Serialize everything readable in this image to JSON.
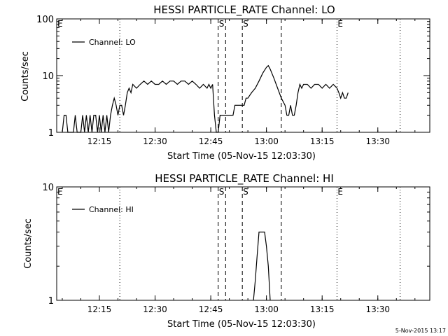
{
  "footer_stamp": "5-Nov-2015 13:17",
  "chart_data": [
    {
      "type": "line",
      "title": "HESSI PARTICLE_RATE Channel: LO",
      "xlabel": "Start Time (05-Nov-15 12:03:30)",
      "ylabel": "Counts/sec",
      "yscale": "log",
      "ylim": [
        1,
        100
      ],
      "xlim": [
        "12:03:30",
        "13:44:00"
      ],
      "xticks": [
        "12:15",
        "12:30",
        "12:45",
        "13:00",
        "13:15",
        "13:30"
      ],
      "yticks": [
        "1",
        "10",
        "100"
      ],
      "legend": "top-left",
      "series": [
        {
          "name": "Channel: LO",
          "points": [
            [
              "12:05:00",
              1
            ],
            [
              "12:05:30",
              2
            ],
            [
              "12:06:00",
              2
            ],
            [
              "12:06:30",
              1
            ],
            [
              "12:07:30",
              1
            ],
            [
              "12:08:00",
              1
            ],
            [
              "12:08:30",
              2
            ],
            [
              "12:09:00",
              1
            ],
            [
              "12:10:00",
              1
            ],
            [
              "12:10:30",
              2
            ],
            [
              "12:11:00",
              1
            ],
            [
              "12:11:30",
              2
            ],
            [
              "12:12:00",
              1
            ],
            [
              "12:12:30",
              2
            ],
            [
              "12:13:00",
              1
            ],
            [
              "12:13:30",
              2
            ],
            [
              "12:14:00",
              2
            ],
            [
              "12:14:30",
              1
            ],
            [
              "12:15:00",
              2
            ],
            [
              "12:15:30",
              1
            ],
            [
              "12:16:00",
              2
            ],
            [
              "12:16:30",
              1
            ],
            [
              "12:17:00",
              2
            ],
            [
              "12:17:30",
              1
            ],
            [
              "12:18:00",
              2
            ],
            [
              "12:18:30",
              3
            ],
            [
              "12:19:00",
              4
            ],
            [
              "12:19:30",
              3
            ],
            [
              "12:20:00",
              2
            ],
            [
              "12:20:30",
              3
            ],
            [
              "12:21:00",
              3
            ],
            [
              "12:21:30",
              2
            ],
            [
              "12:22:00",
              3
            ],
            [
              "12:22:30",
              5
            ],
            [
              "12:23:00",
              6
            ],
            [
              "12:23:30",
              5
            ],
            [
              "12:24:00",
              7
            ],
            [
              "12:25:00",
              6
            ],
            [
              "12:26:00",
              7
            ],
            [
              "12:27:00",
              8
            ],
            [
              "12:28:00",
              7
            ],
            [
              "12:29:00",
              8
            ],
            [
              "12:30:00",
              7
            ],
            [
              "12:31:00",
              7
            ],
            [
              "12:32:00",
              8
            ],
            [
              "12:33:00",
              7
            ],
            [
              "12:34:00",
              8
            ],
            [
              "12:35:00",
              8
            ],
            [
              "12:36:00",
              7
            ],
            [
              "12:37:00",
              8
            ],
            [
              "12:38:00",
              8
            ],
            [
              "12:39:00",
              7
            ],
            [
              "12:40:00",
              8
            ],
            [
              "12:41:00",
              7
            ],
            [
              "12:42:00",
              6
            ],
            [
              "12:43:00",
              7
            ],
            [
              "12:44:00",
              6
            ],
            [
              "12:44:30",
              7
            ],
            [
              "12:45:00",
              6
            ],
            [
              "12:45:30",
              7
            ],
            [
              "12:46:00",
              2
            ],
            [
              "12:46:30",
              1
            ],
            [
              "12:47:00",
              1
            ],
            [
              "12:47:30",
              2
            ],
            [
              "12:48:00",
              2
            ],
            [
              "12:49:00",
              2
            ],
            [
              "12:50:00",
              2
            ],
            [
              "12:51:00",
              2
            ],
            [
              "12:51:30",
              3
            ],
            [
              "12:52:00",
              3
            ],
            [
              "12:53:00",
              3
            ],
            [
              "12:54:00",
              3
            ],
            [
              "12:54:30",
              4
            ],
            [
              "12:55:00",
              4
            ],
            [
              "12:56:00",
              5
            ],
            [
              "12:57:00",
              6
            ],
            [
              "12:58:00",
              8
            ],
            [
              "12:59:00",
              11
            ],
            [
              "13:00:00",
              14
            ],
            [
              "13:00:30",
              15
            ],
            [
              "13:01:00",
              13
            ],
            [
              "13:02:00",
              9
            ],
            [
              "13:03:00",
              6
            ],
            [
              "13:04:00",
              4
            ],
            [
              "13:05:00",
              3
            ],
            [
              "13:05:30",
              2
            ],
            [
              "13:06:00",
              2
            ],
            [
              "13:06:30",
              3
            ],
            [
              "13:07:00",
              2
            ],
            [
              "13:07:30",
              2
            ],
            [
              "13:08:00",
              3
            ],
            [
              "13:08:30",
              5
            ],
            [
              "13:09:00",
              7
            ],
            [
              "13:09:30",
              6
            ],
            [
              "13:10:00",
              7
            ],
            [
              "13:11:00",
              7
            ],
            [
              "13:12:00",
              6
            ],
            [
              "13:13:00",
              7
            ],
            [
              "13:14:00",
              7
            ],
            [
              "13:15:00",
              6
            ],
            [
              "13:16:00",
              7
            ],
            [
              "13:17:00",
              6
            ],
            [
              "13:18:00",
              7
            ],
            [
              "13:19:00",
              6
            ],
            [
              "13:19:30",
              5
            ],
            [
              "13:20:00",
              4
            ],
            [
              "13:20:30",
              5
            ],
            [
              "13:21:00",
              4
            ],
            [
              "13:21:30",
              4
            ],
            [
              "13:22:00",
              5
            ]
          ]
        }
      ],
      "markers": [
        {
          "label": "E",
          "time": "12:03:30",
          "style": "dotted"
        },
        {
          "label": "",
          "time": "12:20:30",
          "style": "dotted"
        },
        {
          "label": "S",
          "time": "12:47:00",
          "style": "dashed"
        },
        {
          "label": "",
          "time": "12:49:00",
          "style": "dashed"
        },
        {
          "label": "S",
          "time": "12:53:30",
          "style": "dashed"
        },
        {
          "label": "",
          "time": "13:04:00",
          "style": "dashed"
        },
        {
          "label": "E",
          "time": "13:19:00",
          "style": "dotted"
        },
        {
          "label": "",
          "time": "13:36:00",
          "style": "dotted"
        }
      ]
    },
    {
      "type": "line",
      "title": "HESSI PARTICLE_RATE Channel: HI",
      "xlabel": "Start Time (05-Nov-15 12:03:30)",
      "ylabel": "Counts/sec",
      "yscale": "log",
      "ylim": [
        1,
        10
      ],
      "xlim": [
        "12:03:30",
        "13:44:00"
      ],
      "xticks": [
        "12:15",
        "12:30",
        "12:45",
        "13:00",
        "13:15",
        "13:30"
      ],
      "yticks": [
        "1",
        "10"
      ],
      "legend": "top-left",
      "series": [
        {
          "name": "Channel: HI",
          "points": [
            [
              "12:56:30",
              1
            ],
            [
              "12:57:00",
              1.5
            ],
            [
              "12:57:30",
              2.5
            ],
            [
              "12:58:00",
              4
            ],
            [
              "12:59:00",
              4
            ],
            [
              "12:59:30",
              4
            ],
            [
              "13:00:00",
              3
            ],
            [
              "13:00:30",
              2
            ],
            [
              "13:01:00",
              1
            ]
          ]
        }
      ],
      "markers": [
        {
          "label": "E",
          "time": "12:03:30",
          "style": "dotted"
        },
        {
          "label": "",
          "time": "12:20:30",
          "style": "dotted"
        },
        {
          "label": "S",
          "time": "12:47:00",
          "style": "dashed"
        },
        {
          "label": "",
          "time": "12:49:00",
          "style": "dashed"
        },
        {
          "label": "S",
          "time": "12:53:30",
          "style": "dashed"
        },
        {
          "label": "",
          "time": "13:04:00",
          "style": "dashed"
        },
        {
          "label": "E",
          "time": "13:19:00",
          "style": "dotted"
        },
        {
          "label": "",
          "time": "13:36:00",
          "style": "dotted"
        }
      ]
    }
  ]
}
